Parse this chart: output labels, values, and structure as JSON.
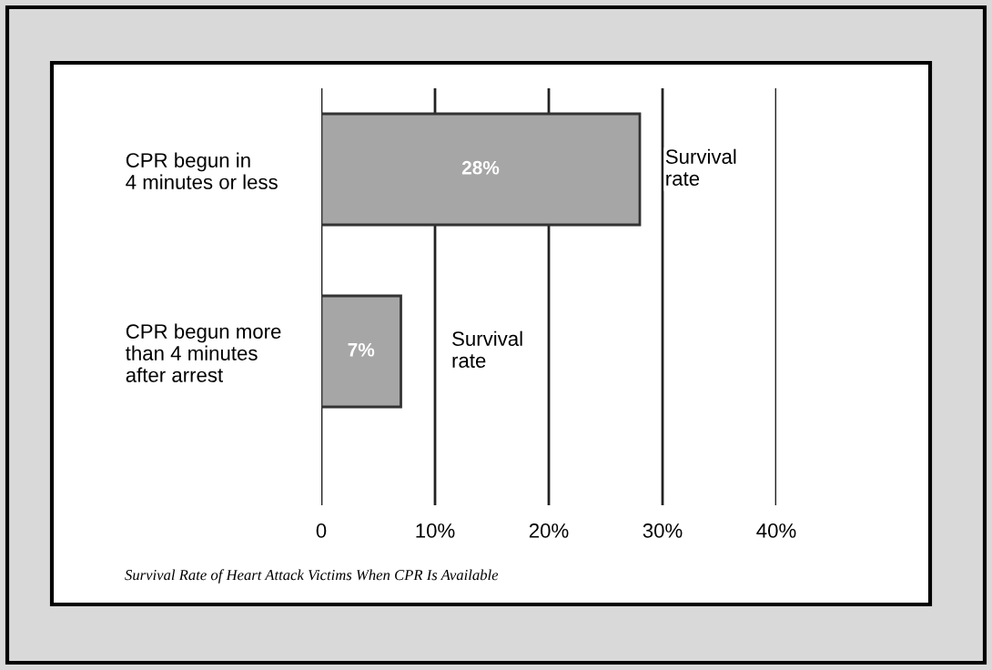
{
  "chart_data": {
    "type": "bar",
    "orientation": "horizontal",
    "categories": [
      "CPR begun in\n4 minutes or less",
      "CPR begun more\nthan 4 minutes\nafter arrest"
    ],
    "values": [
      28,
      7
    ],
    "color": "#a6a6a6",
    "value_labels": [
      "28%",
      "7%"
    ],
    "xlim": [
      0,
      40
    ],
    "xticks": [
      0,
      {
        "value": 10,
        "label": "10%"
      },
      {
        "value": 20,
        "label": "20%"
      },
      {
        "value": 30,
        "label": "30%"
      },
      {
        "value": 40,
        "label": "40%"
      }
    ],
    "grid": "x",
    "annotations": [
      "Survival\nrate",
      "Survival\nrate",
      "Survival Rate of Heart Attack Victims When CPR Is Available"
    ]
  }
}
